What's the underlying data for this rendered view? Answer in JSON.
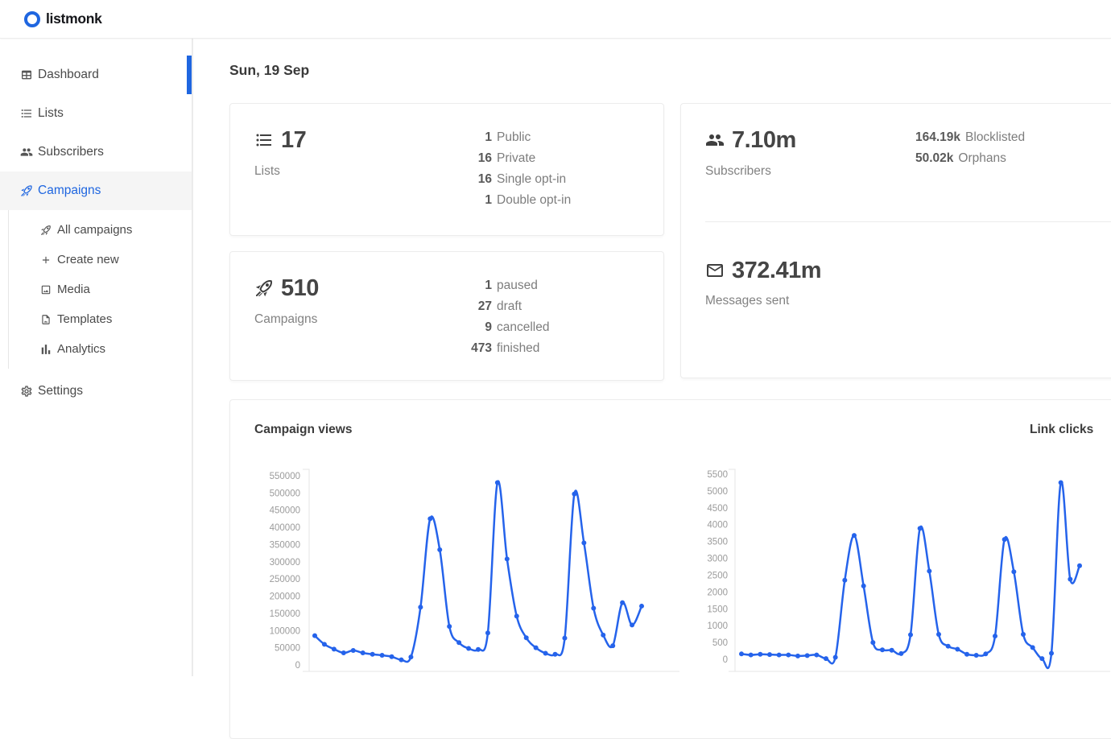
{
  "colors": {
    "primary": "#1f66e0",
    "chart_line": "#2563eb",
    "chart_axis": "#e5e5e5",
    "tick_text": "#9b9b9b"
  },
  "brand": {
    "name": "listmonk"
  },
  "page": {
    "date_title": "Sun, 19 Sep"
  },
  "sidebar": {
    "dashboard": "Dashboard",
    "lists": "Lists",
    "subscribers": "Subscribers",
    "campaigns": "Campaigns",
    "campaigns_submenu": {
      "all_campaigns": "All campaigns",
      "create_new": "Create new",
      "media": "Media",
      "templates": "Templates",
      "analytics": "Analytics"
    },
    "settings": "Settings"
  },
  "cards": {
    "lists": {
      "count": "17",
      "label": "Lists",
      "stats": [
        {
          "value": "1",
          "label": "Public"
        },
        {
          "value": "16",
          "label": "Private"
        },
        {
          "value": "16",
          "label": "Single opt-in"
        },
        {
          "value": "1",
          "label": "Double opt-in"
        }
      ]
    },
    "campaigns": {
      "count": "510",
      "label": "Campaigns",
      "stats": [
        {
          "value": "1",
          "label": "paused"
        },
        {
          "value": "27",
          "label": "draft"
        },
        {
          "value": "9",
          "label": "cancelled"
        },
        {
          "value": "473",
          "label": "finished"
        }
      ]
    },
    "subscribers": {
      "count": "7.10m",
      "label": "Subscribers",
      "stats": [
        {
          "value": "164.19k",
          "label": "Blocklisted"
        },
        {
          "value": "50.02k",
          "label": "Orphans"
        }
      ]
    },
    "messages": {
      "count": "372.41m",
      "label": "Messages sent"
    }
  },
  "chart_data": [
    {
      "type": "line",
      "title": "Campaign views",
      "ylim": [
        0,
        550000
      ],
      "y_tick_step": 50000,
      "grid": false,
      "legend": "none",
      "values": [
        85000,
        60000,
        46000,
        35000,
        42000,
        35000,
        31000,
        28000,
        24000,
        15000,
        23000,
        168000,
        425000,
        335000,
        112000,
        65000,
        48000,
        45000,
        93000,
        530000,
        308000,
        142000,
        79000,
        50000,
        34000,
        31000,
        78000,
        497000,
        355000,
        165000,
        87000,
        56000,
        181000,
        116000,
        171000
      ]
    },
    {
      "type": "line",
      "title": "Link clicks",
      "ylim": [
        0,
        5500
      ],
      "y_tick_step": 500,
      "grid": false,
      "legend": "none",
      "values": [
        160,
        130,
        150,
        140,
        130,
        130,
        100,
        110,
        130,
        20,
        60,
        2350,
        3680,
        2180,
        500,
        280,
        270,
        170,
        730,
        3890,
        2620,
        740,
        390,
        300,
        150,
        120,
        160,
        690,
        3560,
        2600,
        740,
        350,
        20,
        180,
        5250,
        2380,
        2780
      ]
    }
  ]
}
